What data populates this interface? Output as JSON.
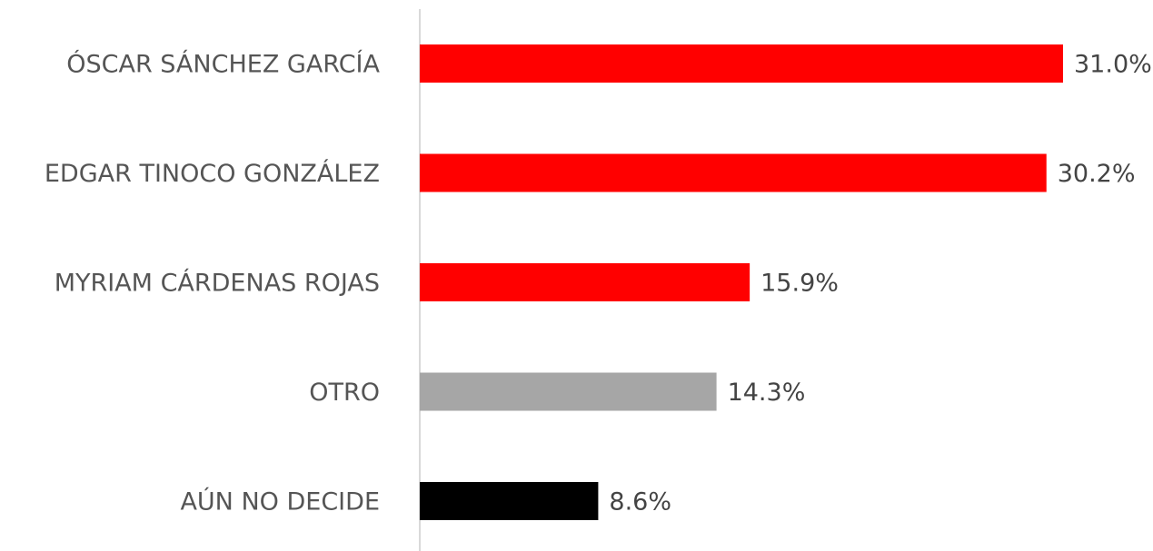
{
  "chart_data": {
    "type": "bar",
    "orientation": "horizontal",
    "categories": [
      "ÓSCAR SÁNCHEZ GARCÍA",
      "EDGAR TINOCO GONZÁLEZ",
      "MYRIAM CÁRDENAS ROJAS",
      "OTRO",
      "AÚN NO DECIDE"
    ],
    "values": [
      31.0,
      30.2,
      15.9,
      14.3,
      8.6
    ],
    "value_labels": [
      "31.0%",
      "30.2%",
      "15.9%",
      "14.3%",
      "8.6%"
    ],
    "colors": [
      "#ff0000",
      "#ff0000",
      "#ff0000",
      "#a6a6a6",
      "#000000"
    ]
  }
}
